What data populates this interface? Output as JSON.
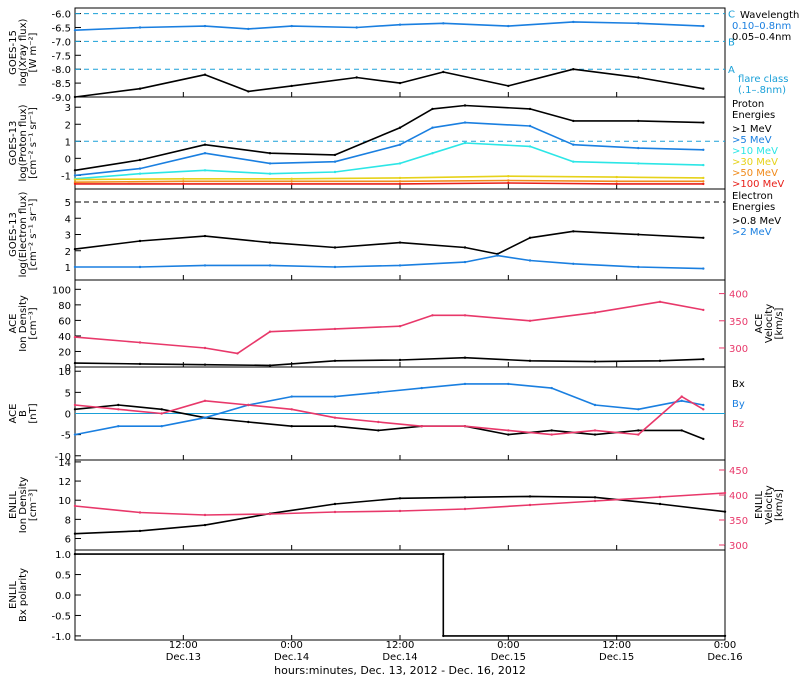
{
  "colors": {
    "black": "#000000",
    "blue": "#1a7fe0",
    "cyan": "#2ce6e6",
    "green": "#2ecc2e",
    "yellow": "#e6d21a",
    "orange": "#f08a1a",
    "red": "#e8201a",
    "pink": "#e8386a",
    "ref": "#1aa0d8"
  },
  "footer": {
    "xlabel": "hours:minutes, Dec. 13, 2012 - Dec. 16, 2012"
  },
  "chart_data": [
    {
      "type": "line",
      "id": "xray",
      "ylabel": [
        "GOES-15",
        "log(Xray flux)",
        "[W m⁻²]"
      ],
      "ylim": [
        -9.0,
        -5.8
      ],
      "yticks": [
        -6.0,
        -6.5,
        -7.0,
        -7.5,
        -8.0,
        -8.5,
        -9.0
      ],
      "yticklabels": [
        "-6.0",
        "-6.5",
        "-7.0",
        "-7.5",
        "-8.0",
        "-8.5",
        "-9.0"
      ],
      "reference_lines": [
        {
          "value": -6,
          "label": "C"
        },
        {
          "value": -7,
          "label": "B"
        },
        {
          "value": -8,
          "label": "A"
        }
      ],
      "legend": {
        "title": "Wavelength",
        "entries": [
          "0.10–0.8nm",
          "0.05–0.4nm"
        ],
        "note": [
          "flare class",
          "(.1–.8nm)"
        ]
      },
      "series": [
        {
          "name": "0.10–0.8nm",
          "color": "blue",
          "x": [
            0.0,
            0.3,
            0.6,
            0.8,
            1.0,
            1.3,
            1.5,
            1.7,
            2.0,
            2.3,
            2.6,
            2.9
          ],
          "values": [
            -6.6,
            -6.5,
            -6.45,
            -6.55,
            -6.45,
            -6.5,
            -6.4,
            -6.35,
            -6.45,
            -6.3,
            -6.35,
            -6.45
          ]
        },
        {
          "name": "0.05–0.4nm",
          "color": "black",
          "x": [
            0.0,
            0.3,
            0.6,
            0.8,
            1.0,
            1.3,
            1.5,
            1.7,
            2.0,
            2.3,
            2.6,
            2.9
          ],
          "values": [
            -9.0,
            -8.7,
            -8.2,
            -8.8,
            -8.6,
            -8.3,
            -8.5,
            -8.1,
            -8.6,
            -8.0,
            -8.3,
            -8.7
          ]
        }
      ]
    },
    {
      "type": "line",
      "id": "proton",
      "ylabel": [
        "GOES-13",
        "log(Proton flux)",
        "[cm⁻² s⁻¹ sr⁻¹]"
      ],
      "ylim": [
        -1.8,
        3.6
      ],
      "yticks": [
        3,
        2,
        1,
        0,
        -1
      ],
      "yticklabels": [
        "3",
        "2",
        "1",
        "0",
        "-1"
      ],
      "reference_lines": [
        {
          "value": 1,
          "label": ""
        }
      ],
      "legend": {
        "title": "Proton",
        "subtitle": "Energies",
        "entries": [
          ">1 MeV",
          ">5 MeV",
          ">10 MeV",
          ">30 MeV",
          ">50 MeV",
          ">100 MeV"
        ]
      },
      "series": [
        {
          "name": ">1 MeV",
          "color": "black",
          "x": [
            0.0,
            0.3,
            0.6,
            0.9,
            1.2,
            1.5,
            1.65,
            1.8,
            2.1,
            2.3,
            2.6,
            2.9
          ],
          "values": [
            -0.7,
            -0.1,
            0.8,
            0.3,
            0.2,
            1.8,
            2.9,
            3.1,
            2.9,
            2.2,
            2.2,
            2.1
          ]
        },
        {
          "name": ">5 MeV",
          "color": "blue",
          "x": [
            0.0,
            0.3,
            0.6,
            0.9,
            1.2,
            1.5,
            1.65,
            1.8,
            2.1,
            2.3,
            2.6,
            2.9
          ],
          "values": [
            -1.0,
            -0.6,
            0.3,
            -0.3,
            -0.2,
            0.8,
            1.8,
            2.1,
            1.9,
            0.8,
            0.6,
            0.5
          ]
        },
        {
          "name": ">10 MeV",
          "color": "cyan",
          "x": [
            0.0,
            0.3,
            0.6,
            0.9,
            1.2,
            1.5,
            1.65,
            1.8,
            2.1,
            2.3,
            2.6,
            2.9
          ],
          "values": [
            -1.2,
            -0.9,
            -0.7,
            -0.9,
            -0.8,
            -0.3,
            0.3,
            0.9,
            0.7,
            -0.2,
            -0.3,
            -0.4
          ]
        },
        {
          "name": ">30 MeV",
          "color": "yellow",
          "x": [
            0.0,
            0.5,
            1.0,
            1.5,
            2.0,
            2.5,
            2.9
          ],
          "values": [
            -1.25,
            -1.2,
            -1.2,
            -1.15,
            -1.05,
            -1.1,
            -1.15
          ]
        },
        {
          "name": ">50 MeV",
          "color": "orange",
          "x": [
            0.0,
            0.5,
            1.0,
            1.5,
            2.0,
            2.5,
            2.9
          ],
          "values": [
            -1.4,
            -1.35,
            -1.35,
            -1.35,
            -1.3,
            -1.35,
            -1.35
          ]
        },
        {
          "name": ">100 MeV",
          "color": "red",
          "x": [
            0.0,
            0.5,
            1.0,
            1.5,
            2.0,
            2.5,
            2.9
          ],
          "values": [
            -1.5,
            -1.5,
            -1.5,
            -1.5,
            -1.45,
            -1.5,
            -1.5
          ]
        }
      ]
    },
    {
      "type": "line",
      "id": "electron",
      "ylabel": [
        "GOES-13",
        "log(Electron flux)",
        "[cm⁻² s⁻¹ sr⁻¹]"
      ],
      "ylim": [
        0.2,
        5.8
      ],
      "yticks": [
        5,
        4,
        3,
        2,
        1
      ],
      "yticklabels": [
        "5",
        "4",
        "3",
        "2",
        "1"
      ],
      "reference_lines": [
        {
          "value": 5,
          "label": ""
        }
      ],
      "legend": {
        "title": "Electron",
        "subtitle": "Energies",
        "entries": [
          ">0.8 MeV",
          ">2 MeV"
        ]
      },
      "series": [
        {
          "name": ">0.8 MeV",
          "color": "black",
          "x": [
            0.0,
            0.3,
            0.6,
            0.9,
            1.2,
            1.5,
            1.8,
            1.95,
            2.1,
            2.3,
            2.6,
            2.9
          ],
          "values": [
            2.1,
            2.6,
            2.9,
            2.5,
            2.2,
            2.5,
            2.2,
            1.8,
            2.8,
            3.2,
            3.0,
            2.8
          ]
        },
        {
          "name": ">2 MeV",
          "color": "blue",
          "x": [
            0.0,
            0.3,
            0.6,
            0.9,
            1.2,
            1.5,
            1.8,
            1.95,
            2.1,
            2.3,
            2.6,
            2.9
          ],
          "values": [
            1.0,
            1.0,
            1.1,
            1.1,
            1.0,
            1.1,
            1.3,
            1.7,
            1.4,
            1.2,
            1.0,
            0.9
          ]
        }
      ]
    },
    {
      "type": "line",
      "id": "ace_density",
      "ylabel": [
        "ACE",
        "Ion Density",
        "[cm⁻³]"
      ],
      "ylim": [
        0,
        112
      ],
      "yticks": [
        100,
        80,
        60,
        40,
        20,
        0
      ],
      "yticklabels": [
        "100",
        "80",
        "60",
        "40",
        "20",
        "0"
      ],
      "ylabel_right": [
        "ACE",
        "Velocity",
        "[km/s]"
      ],
      "ylim_right": [
        265,
        425
      ],
      "yticks_right": [
        400,
        350,
        300
      ],
      "yticklabels_right": [
        "400",
        "350",
        "300"
      ],
      "series": [
        {
          "name": "Ion Density",
          "color": "black",
          "x": [
            0.0,
            0.3,
            0.6,
            0.9,
            1.2,
            1.5,
            1.8,
            2.1,
            2.4,
            2.7,
            2.9
          ],
          "values": [
            5,
            4,
            3,
            2,
            8,
            9,
            12,
            8,
            7,
            8,
            10
          ]
        },
        {
          "name": "Velocity",
          "color": "pink",
          "axis": "right",
          "x": [
            0.0,
            0.3,
            0.6,
            0.75,
            0.9,
            1.2,
            1.5,
            1.65,
            1.8,
            2.1,
            2.4,
            2.7,
            2.9
          ],
          "values": [
            320,
            310,
            300,
            290,
            330,
            335,
            340,
            360,
            360,
            350,
            365,
            385,
            370
          ]
        }
      ]
    },
    {
      "type": "line",
      "id": "ace_b",
      "ylabel": [
        "ACE",
        "B",
        "[nT]"
      ],
      "ylim": [
        -11,
        11
      ],
      "yticks": [
        10,
        5,
        0,
        -5,
        -10
      ],
      "yticklabels": [
        "10",
        "5",
        "0",
        "-5",
        "-10"
      ],
      "reference_lines": [
        {
          "value": 0,
          "label": ""
        }
      ],
      "legend": {
        "entries": [
          "Bx",
          "By",
          "Bz"
        ]
      },
      "series": [
        {
          "name": "Bx",
          "color": "black",
          "x": [
            0.0,
            0.2,
            0.4,
            0.6,
            0.8,
            1.0,
            1.2,
            1.4,
            1.6,
            1.8,
            2.0,
            2.2,
            2.4,
            2.6,
            2.8,
            2.9
          ],
          "values": [
            1,
            2,
            1,
            -1,
            -2,
            -3,
            -3,
            -4,
            -3,
            -3,
            -5,
            -4,
            -5,
            -4,
            -4,
            -6
          ]
        },
        {
          "name": "By",
          "color": "blue",
          "x": [
            0.0,
            0.2,
            0.4,
            0.6,
            0.8,
            1.0,
            1.2,
            1.4,
            1.6,
            1.8,
            2.0,
            2.2,
            2.4,
            2.6,
            2.8,
            2.9
          ],
          "values": [
            -5,
            -3,
            -3,
            -1,
            2,
            4,
            4,
            5,
            6,
            7,
            7,
            6,
            2,
            1,
            3,
            2
          ]
        },
        {
          "name": "Bz",
          "color": "pink",
          "x": [
            0.0,
            0.2,
            0.4,
            0.6,
            0.8,
            1.0,
            1.2,
            1.4,
            1.6,
            1.8,
            2.0,
            2.2,
            2.4,
            2.6,
            2.8,
            2.9
          ],
          "values": [
            2,
            1,
            0,
            3,
            2,
            1,
            -1,
            -2,
            -3,
            -3,
            -4,
            -5,
            -4,
            -5,
            4,
            1
          ]
        }
      ]
    },
    {
      "type": "line",
      "id": "enlil_density",
      "ylabel": [
        "ENLIL",
        "Ion Density",
        "[cm⁻³]"
      ],
      "ylim": [
        4.8,
        14.2
      ],
      "yticks": [
        14,
        12,
        10,
        8,
        6
      ],
      "yticklabels": [
        "14",
        "12",
        "10",
        "8",
        "6"
      ],
      "ylabel_right": [
        "ENLIL",
        "Velocity",
        "[km/s]"
      ],
      "ylim_right": [
        290,
        470
      ],
      "yticks_right": [
        450,
        400,
        350,
        300
      ],
      "yticklabels_right": [
        "450",
        "400",
        "350",
        "300"
      ],
      "series": [
        {
          "name": "Ion Density",
          "color": "black",
          "x": [
            0.0,
            0.3,
            0.6,
            0.9,
            1.2,
            1.5,
            1.8,
            2.1,
            2.4,
            2.7,
            3.0
          ],
          "values": [
            6.5,
            6.8,
            7.4,
            8.6,
            9.6,
            10.2,
            10.3,
            10.4,
            10.3,
            9.6,
            8.8
          ]
        },
        {
          "name": "Velocity",
          "color": "pink",
          "axis": "right",
          "x": [
            0.0,
            0.3,
            0.6,
            0.9,
            1.2,
            1.5,
            1.8,
            2.1,
            2.4,
            2.7,
            3.0
          ],
          "values": [
            378,
            365,
            360,
            362,
            366,
            368,
            372,
            380,
            388,
            396,
            404
          ]
        }
      ]
    },
    {
      "type": "line",
      "id": "enlil_polarity",
      "ylabel": [
        "ENLIL",
        "Bx polarity"
      ],
      "ylim": [
        -1.1,
        1.1
      ],
      "yticks": [
        1.0,
        0.5,
        0.0,
        -0.5,
        -1.0
      ],
      "yticklabels": [
        "1.0",
        "0.5",
        "0.0",
        "-0.5",
        "-1.0"
      ],
      "series": [
        {
          "name": "Bx polarity",
          "color": "black",
          "x": [
            0.0,
            1.7,
            1.7,
            3.0
          ],
          "values": [
            1.0,
            1.0,
            -1.0,
            -1.0
          ]
        }
      ]
    }
  ],
  "xaxis": {
    "range_days": [
      0.0,
      3.0
    ],
    "ticks": [
      {
        "value": 0.5,
        "time": "12:00",
        "date": "Dec.13"
      },
      {
        "value": 1.0,
        "time": "0:00",
        "date": "Dec.14"
      },
      {
        "value": 1.5,
        "time": "12:00",
        "date": "Dec.14"
      },
      {
        "value": 2.0,
        "time": "0:00",
        "date": "Dec.15"
      },
      {
        "value": 2.5,
        "time": "12:00",
        "date": "Dec.15"
      },
      {
        "value": 3.0,
        "time": "0:00",
        "date": "Dec.16"
      }
    ]
  }
}
